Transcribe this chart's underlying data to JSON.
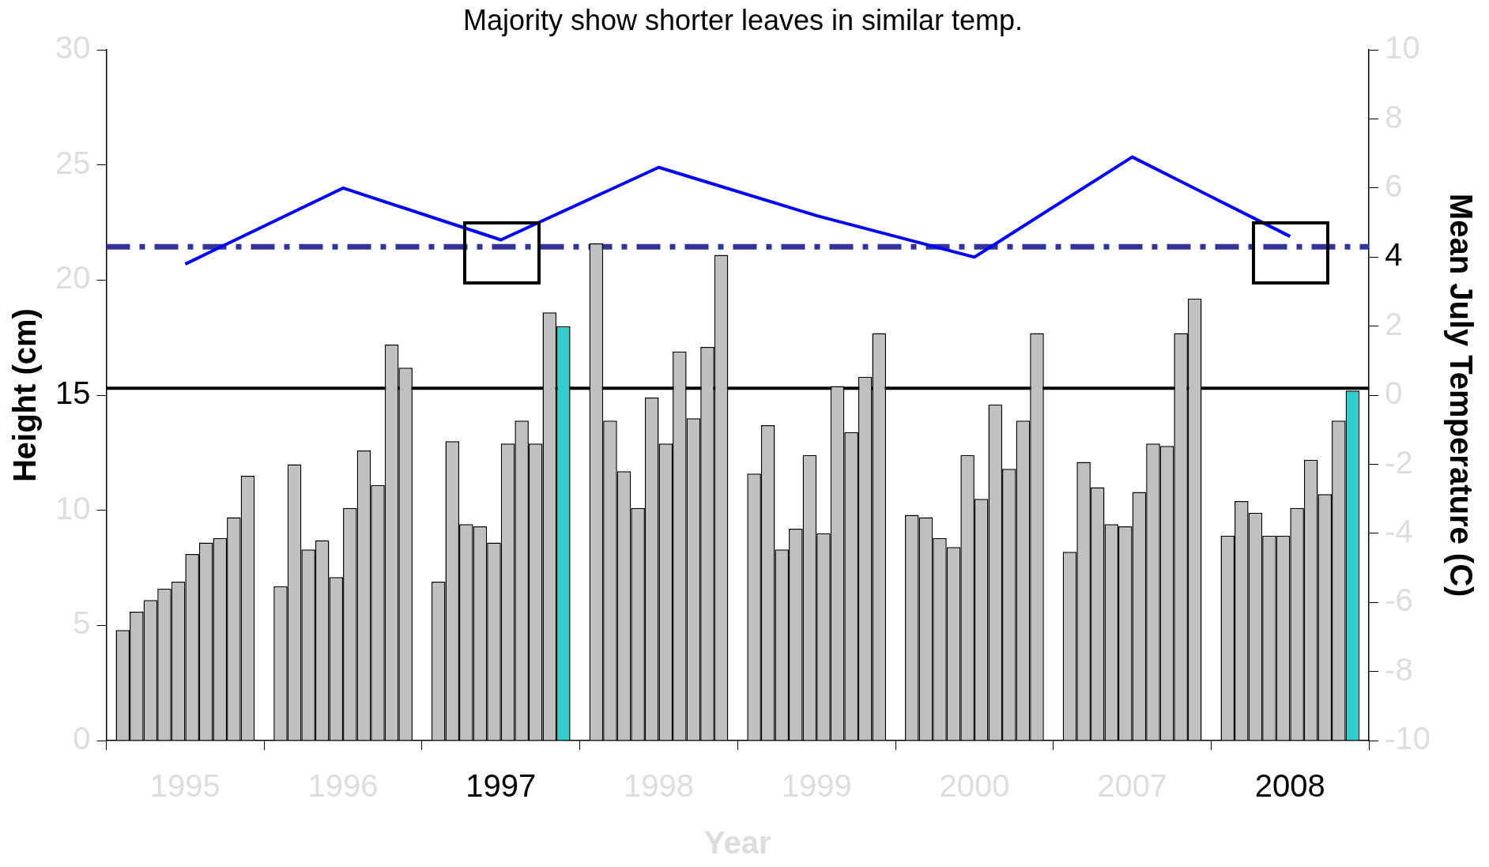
{
  "chart_data": {
    "type": "bar",
    "title": "Majority show shorter leaves in similar temp.",
    "xlabel": "Year",
    "ylabel": "Height (cm)",
    "y2label": "Mean July Temperature (C)",
    "categories": [
      "1995",
      "1996",
      "1997",
      "1998",
      "1999",
      "2000",
      "2007",
      "2008"
    ],
    "series": [
      {
        "color": "#c0c0c0",
        "values": [
          4.8,
          6.7,
          6.9,
          21.6,
          11.6,
          9.8,
          8.2,
          8.9
        ]
      },
      {
        "color": "#c0c0c0",
        "values": [
          5.6,
          12.0,
          13.0,
          13.9,
          13.7,
          9.7,
          12.1,
          10.4
        ]
      },
      {
        "color": "#c0c0c0",
        "values": [
          6.1,
          8.3,
          9.4,
          11.7,
          8.3,
          8.8,
          11.0,
          9.9
        ]
      },
      {
        "color": "#c0c0c0",
        "values": [
          6.6,
          8.7,
          9.3,
          10.1,
          9.2,
          8.4,
          9.4,
          8.9
        ]
      },
      {
        "color": "#c0c0c0",
        "values": [
          6.9,
          7.1,
          8.6,
          14.9,
          12.4,
          12.4,
          9.3,
          8.9
        ]
      },
      {
        "color": "#c0c0c0",
        "values": [
          8.1,
          10.1,
          12.9,
          12.9,
          9.0,
          10.5,
          10.8,
          10.1
        ]
      },
      {
        "color": "#c0c0c0",
        "values": [
          8.6,
          12.6,
          13.9,
          16.9,
          15.4,
          14.6,
          12.9,
          12.2
        ]
      },
      {
        "color": "#c0c0c0",
        "values": [
          8.8,
          11.1,
          12.9,
          14.0,
          13.4,
          11.8,
          12.8,
          10.7
        ]
      },
      {
        "color": "#c0c0c0",
        "values": [
          9.7,
          17.2,
          18.6,
          17.1,
          15.8,
          13.9,
          17.7,
          13.9
        ]
      },
      {
        "color": "#c0c0c0",
        "colors": [
          "#c0c0c0",
          "#c0c0c0",
          "#33cccc",
          "#c0c0c0",
          "#c0c0c0",
          "#c0c0c0",
          "#c0c0c0",
          "#33cccc"
        ],
        "values": [
          11.5,
          16.2,
          18.0,
          21.1,
          17.7,
          17.7,
          19.2,
          15.2
        ]
      },
      {
        "type": "line",
        "axis": "y2",
        "color": "#0000ff",
        "values": [
          3.8,
          6.0,
          4.5,
          6.6,
          5.2,
          4.0,
          6.9,
          4.6
        ]
      }
    ],
    "ylim": [
      0,
      30
    ],
    "yticks": [
      0,
      5,
      10,
      15,
      20,
      25,
      30
    ],
    "y2lim": [
      -10,
      10
    ],
    "y2ticks": [
      -10,
      -8,
      -6,
      -4,
      -2,
      0,
      2,
      4,
      6,
      8,
      10
    ],
    "ref_lines": [
      {
        "axis": "y",
        "value": 15.3,
        "color": "#000000",
        "line_style": "solid"
      },
      {
        "axis": "y2",
        "value": 4.3,
        "color": "#333399",
        "line_style": "dashed"
      }
    ],
    "marker": "none"
  }
}
